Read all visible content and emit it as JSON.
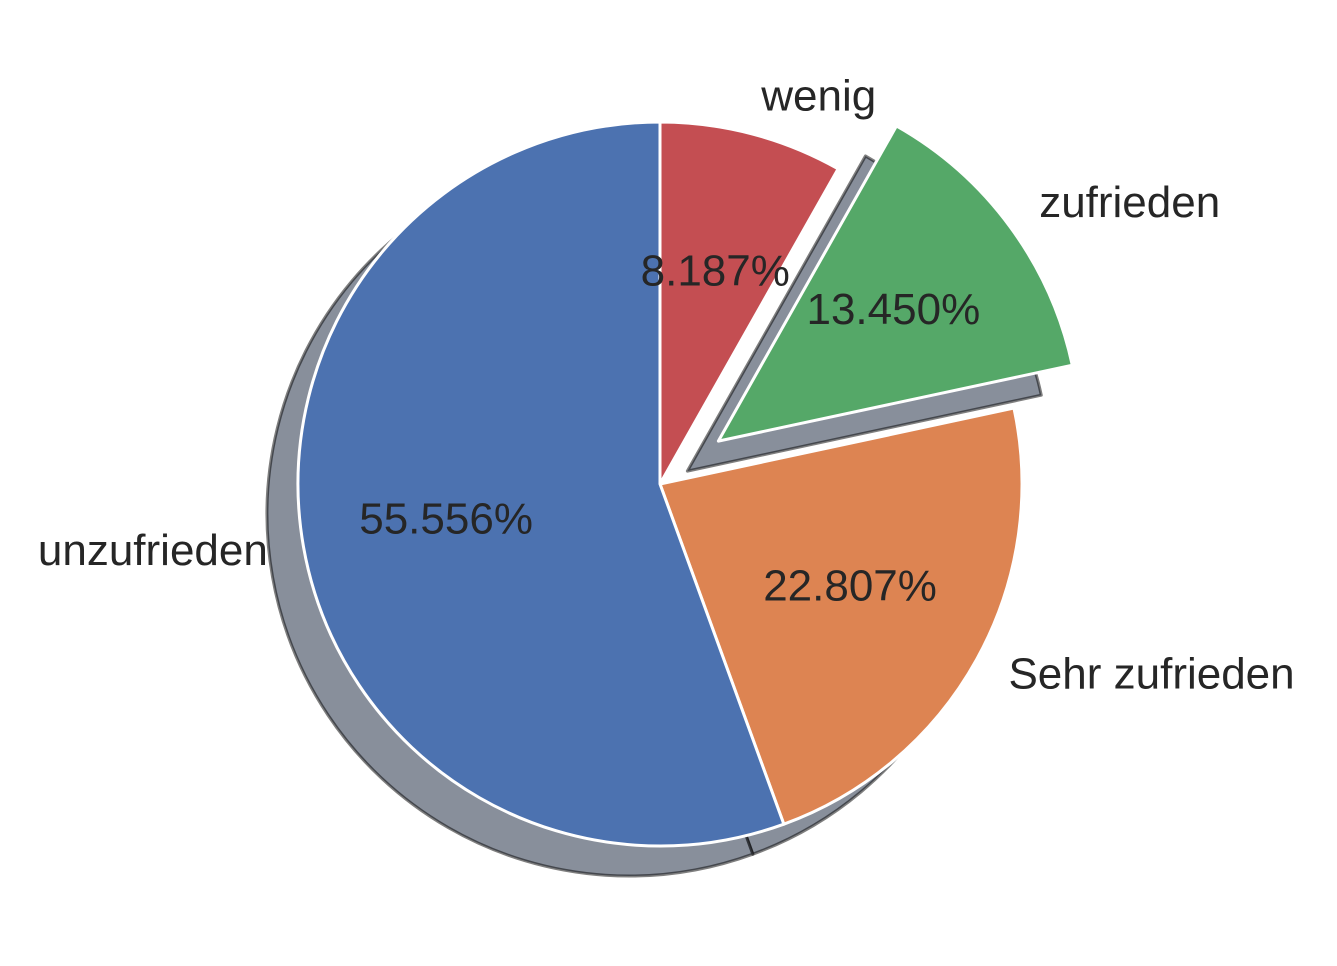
{
  "chart_data": {
    "type": "pie",
    "start_angle_deg": 90,
    "direction": "clockwise",
    "shadow": true,
    "slices": [
      {
        "label": "wenig",
        "value": 8.187,
        "pct_text": "8.187%",
        "color": "#C44E52",
        "explode": 0.0
      },
      {
        "label": "zufrieden",
        "value": 13.45,
        "pct_text": "13.450%",
        "color": "#55A868",
        "explode": 0.2
      },
      {
        "label": "Sehr zufrieden",
        "value": 22.807,
        "pct_text": "22.807%",
        "color": "#DD8452",
        "explode": 0.0
      },
      {
        "label": "unzufrieden",
        "value": 55.556,
        "pct_text": "55.556%",
        "color": "#4C72B0",
        "explode": 0.0
      }
    ],
    "legend": "none"
  }
}
